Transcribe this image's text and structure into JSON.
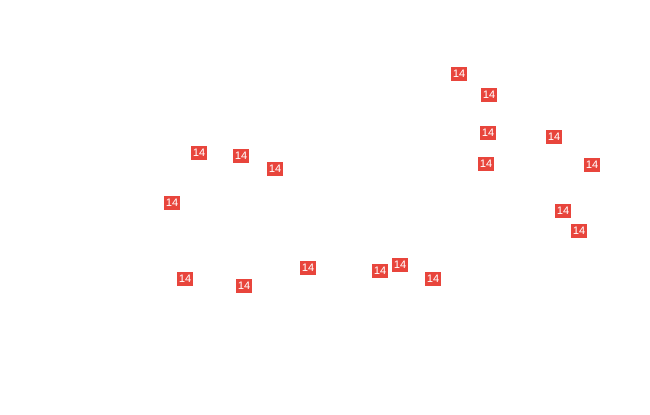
{
  "map": {
    "marker_color": "#e8453c",
    "markers": [
      {
        "label": "14"
      },
      {
        "label": "14"
      },
      {
        "label": "14"
      },
      {
        "label": "14"
      },
      {
        "label": "14"
      },
      {
        "label": "14"
      },
      {
        "label": "14"
      },
      {
        "label": "14"
      },
      {
        "label": "14"
      },
      {
        "label": "14"
      },
      {
        "label": "14"
      },
      {
        "label": "14"
      },
      {
        "label": "14"
      },
      {
        "label": "14"
      },
      {
        "label": "14"
      },
      {
        "label": "14"
      },
      {
        "label": "14"
      },
      {
        "label": "14"
      }
    ]
  }
}
